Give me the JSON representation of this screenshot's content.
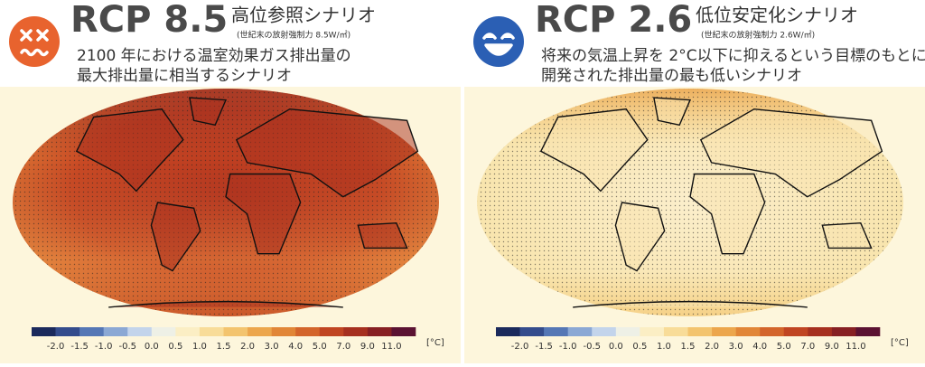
{
  "panels": [
    {
      "title": "RCP 8.5",
      "scenario": "高位参照シナリオ",
      "note": "(世紀末の放射強制力 8.5W/㎡)",
      "description": [
        "2100 年における温室効果ガス排出量の",
        "最大排出量に相当するシナリオ"
      ]
    },
    {
      "title": "RCP 2.6",
      "scenario": "低位安定化シナリオ",
      "note": "(世紀末の放射強制力 2.6W/㎡)",
      "description": [
        "将来の気温上昇を 2°C以下に抑えるという目標のもとに",
        "開発された排出量の最も低いシナリオ"
      ]
    }
  ],
  "colorbar": {
    "colors": [
      "#1b2a5c",
      "#344c8c",
      "#5577b5",
      "#8ba8d4",
      "#c3d4eb",
      "#eef0e6",
      "#fbeec4",
      "#f8dc98",
      "#f3c46e",
      "#eca64c",
      "#e18637",
      "#d3652b",
      "#c04522",
      "#a6301f",
      "#872023",
      "#5b1232"
    ],
    "labels": [
      "-2.0",
      "-1.5",
      "-1.0",
      "-0.5",
      "0.0",
      "0.5",
      "1.0",
      "1.5",
      "2.0",
      "3.0",
      "4.0",
      "5.0",
      "7.0",
      "9.0",
      "11.0"
    ],
    "unit": "[°C]"
  }
}
